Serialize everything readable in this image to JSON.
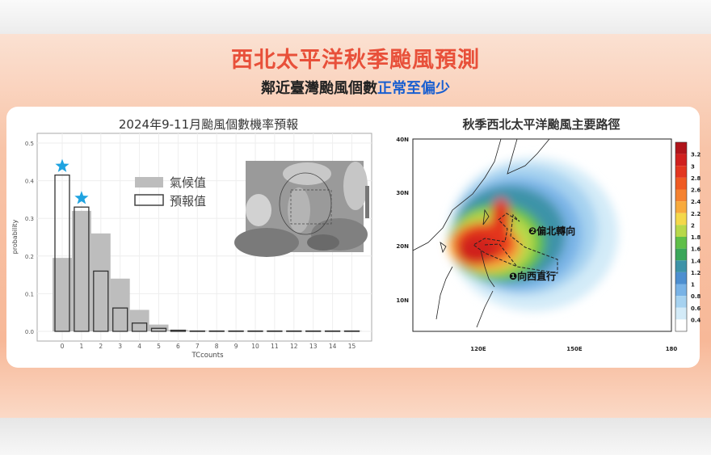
{
  "header": {
    "title": "西北太平洋秋季颱風預測",
    "subtitle_prefix": "鄰近臺灣颱風個數",
    "subtitle_highlight": "正常至偏少"
  },
  "colors": {
    "title": "#e8503a",
    "highlight": "#1a5fd0",
    "star": "#1fa3e0",
    "climate_bar": "#bdbdbd"
  },
  "chart_data": [
    {
      "type": "bar",
      "title": "2024年9-11月颱風個數機率預報",
      "xlabel": "TCcounts",
      "ylabel": "probability",
      "categories": [
        "0",
        "1",
        "2",
        "3",
        "4",
        "5",
        "6",
        "7",
        "8",
        "9",
        "10",
        "11",
        "12",
        "13",
        "14",
        "15"
      ],
      "ylim": [
        0,
        0.5
      ],
      "yticks": [
        "0.0",
        "0.1",
        "0.2",
        "0.3",
        "0.4",
        "0.5"
      ],
      "grid": true,
      "legend_placement": "top-center",
      "series": [
        {
          "name": "氣候值",
          "values": [
            0.195,
            0.32,
            0.26,
            0.14,
            0.057,
            0.018,
            0.004,
            0.002,
            0.001,
            0.001,
            0.001,
            0.001,
            0.001,
            0.001,
            0.001,
            0.001
          ]
        },
        {
          "name": "預報值",
          "values": [
            0.415,
            0.33,
            0.16,
            0.062,
            0.022,
            0.008,
            0.003,
            0.001,
            0.001,
            0.001,
            0.001,
            0.001,
            0.001,
            0.001,
            0.001,
            0.001
          ]
        }
      ],
      "annotations": [
        {
          "type": "star",
          "category": "0"
        },
        {
          "type": "star",
          "category": "1"
        }
      ]
    },
    {
      "type": "heatmap",
      "title": "秋季西北太平洋颱風主要路徑",
      "yticks": [
        "40N",
        "30N",
        "20N",
        "10N"
      ],
      "xticks": [
        "120E",
        "150E",
        "180"
      ],
      "colorbar_ticks": [
        "3.2",
        "3",
        "2.8",
        "2.6",
        "2.4",
        "2.2",
        "2",
        "1.8",
        "1.6",
        "1.4",
        "1.2",
        "1",
        "0.8",
        "0.6",
        "0.4"
      ],
      "colorbar_colors": [
        "#b0141a",
        "#d0201e",
        "#e3361f",
        "#ef5a22",
        "#f58230",
        "#f8aa3c",
        "#f4d84a",
        "#b8d84a",
        "#5fbf48",
        "#3aa65a",
        "#3d93a8",
        "#4d8fd0",
        "#79b3e6",
        "#a6d2f0",
        "#d3ebf8",
        "#ffffff"
      ],
      "annotations": [
        "❷偏北轉向",
        "❶向西直行"
      ]
    }
  ]
}
